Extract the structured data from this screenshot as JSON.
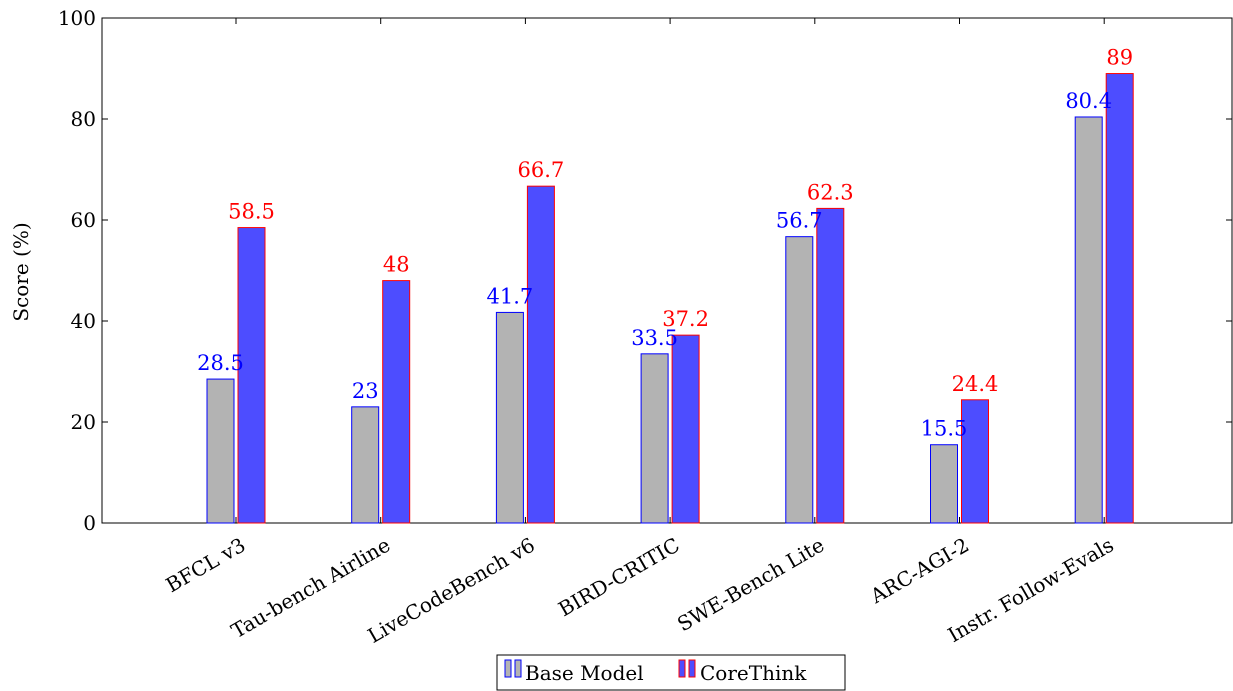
{
  "chart_data": {
    "type": "bar",
    "title": "",
    "xlabel": "",
    "ylabel": "Score (%)",
    "ylim": [
      0,
      100
    ],
    "yticks": [
      0,
      20,
      40,
      60,
      80,
      100
    ],
    "grid": false,
    "legend_position": "bottom-center",
    "categories": [
      "BFCL v3",
      "Tau-bench Airline",
      "LiveCodeBench v6",
      "BIRD-CRITIC",
      "SWE-Bench Lite",
      "ARC-AGI-2",
      "Instr. Follow-Evals"
    ],
    "series": [
      {
        "name": "Base Model",
        "values": [
          28.5,
          23,
          41.7,
          33.5,
          56.7,
          15.5,
          80.4
        ],
        "fill": "#b3b3b3",
        "stroke": "#0000ff",
        "label_color": "#0000ff"
      },
      {
        "name": "CoreThink",
        "values": [
          58.5,
          48,
          66.7,
          37.2,
          62.3,
          24.4,
          89
        ],
        "fill": "#4d4dff",
        "stroke": "#ff0000",
        "label_color": "#ff0000"
      }
    ]
  }
}
